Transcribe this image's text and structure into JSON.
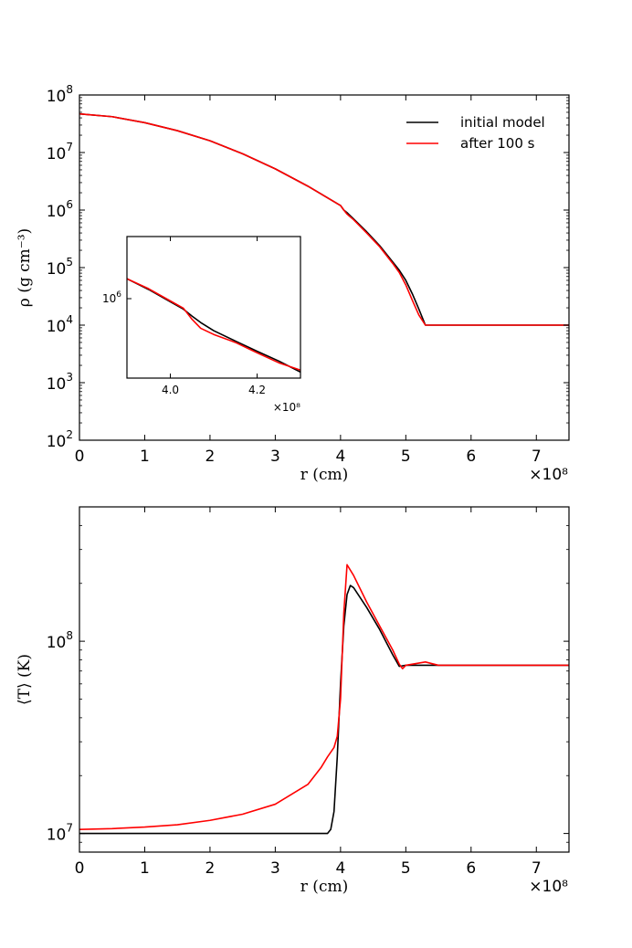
{
  "chart_data": [
    {
      "type": "line",
      "id": "density",
      "xlabel": "r  (cm)",
      "ylabel": "ρ  (g cm⁻³)",
      "x_multiplier": "×10⁸",
      "xlim": [
        0,
        7.5
      ],
      "ylim": [
        100,
        100000000
      ],
      "yscale": "log",
      "grid": false,
      "legend": "top-right",
      "x_ticks": [
        "0",
        "1",
        "2",
        "3",
        "4",
        "5",
        "6",
        "7"
      ],
      "y_ticks": [
        {
          "base": "10",
          "exp": "2"
        },
        {
          "base": "10",
          "exp": "3"
        },
        {
          "base": "10",
          "exp": "4"
        },
        {
          "base": "10",
          "exp": "5"
        },
        {
          "base": "10",
          "exp": "6"
        },
        {
          "base": "10",
          "exp": "7"
        },
        {
          "base": "10",
          "exp": "8"
        }
      ],
      "series": [
        {
          "name": "initial model",
          "color": "#000000",
          "x": [
            0,
            0.5,
            1,
            1.5,
            2,
            2.5,
            3,
            3.5,
            4,
            4.05,
            4.1,
            4.2,
            4.4,
            4.6,
            4.8,
            4.9,
            5.0,
            5.1,
            5.2,
            5.3,
            5.5,
            6,
            7,
            7.5
          ],
          "y": [
            47000000,
            42000000,
            33000000,
            24000000,
            16000000,
            9500000,
            5200000,
            2600000,
            1200000,
            1000000,
            900000,
            700000,
            420000,
            240000,
            125000,
            90000,
            60000,
            35000,
            19000,
            10000,
            10000,
            10000,
            10000,
            10000
          ]
        },
        {
          "name": "after 100 s",
          "color": "#ff0000",
          "x": [
            0,
            0.5,
            1,
            1.5,
            2,
            2.5,
            3,
            3.5,
            4,
            4.05,
            4.1,
            4.2,
            4.4,
            4.6,
            4.8,
            4.9,
            5.0,
            5.1,
            5.2,
            5.3,
            5.5,
            6,
            7,
            7.5
          ],
          "y": [
            47000000,
            42000000,
            33000000,
            24000000,
            16000000,
            9500000,
            5200000,
            2600000,
            1200000,
            1000000,
            850000,
            680000,
            400000,
            230000,
            118000,
            82000,
            50000,
            27000,
            15000,
            10000,
            10000,
            10000,
            10000,
            10000
          ]
        }
      ],
      "inset": {
        "xlim": [
          3.9,
          4.3
        ],
        "ylim": [
          420000,
          2100000
        ],
        "yscale": "log",
        "x_multiplier": "×10⁸",
        "x_ticks": [
          "4.0",
          "4.2"
        ],
        "y_tick": {
          "base": "10",
          "exp": "6"
        },
        "series": [
          {
            "name": "initial model",
            "color": "#000000",
            "x": [
              3.9,
              3.95,
              4.0,
              4.03,
              4.05,
              4.07,
              4.1,
              4.15,
              4.2,
              4.25,
              4.3
            ],
            "y": [
              1300000,
              1150000,
              1000000,
              920000,
              850000,
              790000,
              720000,
              640000,
              570000,
              510000,
              450000
            ]
          },
          {
            "name": "after 100 s",
            "color": "#ff0000",
            "x": [
              3.9,
              3.95,
              4.0,
              4.03,
              4.05,
              4.07,
              4.1,
              4.15,
              4.2,
              4.25,
              4.3
            ],
            "y": [
              1300000,
              1160000,
              1010000,
              930000,
              820000,
              740000,
              690000,
              630000,
              560000,
              500000,
              460000
            ]
          }
        ]
      }
    },
    {
      "type": "line",
      "id": "temperature",
      "xlabel": "r  (cm)",
      "ylabel": "⟨T⟩  (K)",
      "x_multiplier": "×10⁸",
      "xlim": [
        0,
        7.5
      ],
      "ylim": [
        8000000,
        500000000
      ],
      "yscale": "log",
      "grid": false,
      "legend": "none",
      "x_ticks": [
        "0",
        "1",
        "2",
        "3",
        "4",
        "5",
        "6",
        "7"
      ],
      "y_ticks": [
        {
          "base": "10",
          "exp": "7"
        },
        {
          "base": "10",
          "exp": "8"
        }
      ],
      "series": [
        {
          "name": "initial model",
          "color": "#000000",
          "x": [
            0,
            1,
            2,
            3,
            3.8,
            3.85,
            3.9,
            3.95,
            4.0,
            4.05,
            4.1,
            4.15,
            4.2,
            4.4,
            4.6,
            4.8,
            4.9,
            5.0,
            5.5,
            6,
            7,
            7.5
          ],
          "y": [
            10000000,
            10000000,
            10000000,
            10000000,
            10000000,
            10500000,
            13000000,
            25000000,
            60000000,
            120000000,
            175000000,
            195000000,
            190000000,
            150000000,
            115000000,
            85000000,
            74000000,
            75000000,
            75000000,
            75000000,
            75000000,
            75000000
          ]
        },
        {
          "name": "after 100 s",
          "color": "#ff0000",
          "x": [
            0,
            0.5,
            1,
            1.5,
            2,
            2.5,
            3,
            3.5,
            3.7,
            3.8,
            3.9,
            3.95,
            4.0,
            4.05,
            4.1,
            4.2,
            4.4,
            4.6,
            4.8,
            4.9,
            4.95,
            5.0,
            5.3,
            5.5,
            6,
            7,
            7.5
          ],
          "y": [
            10500000,
            10600000,
            10800000,
            11100000,
            11700000,
            12600000,
            14200000,
            18000000,
            22000000,
            25000000,
            28000000,
            32000000,
            50000000,
            140000000,
            250000000,
            220000000,
            160000000,
            120000000,
            90000000,
            76000000,
            72000000,
            75000000,
            78000000,
            75000000,
            75000000,
            75000000,
            75000000
          ]
        }
      ]
    }
  ]
}
